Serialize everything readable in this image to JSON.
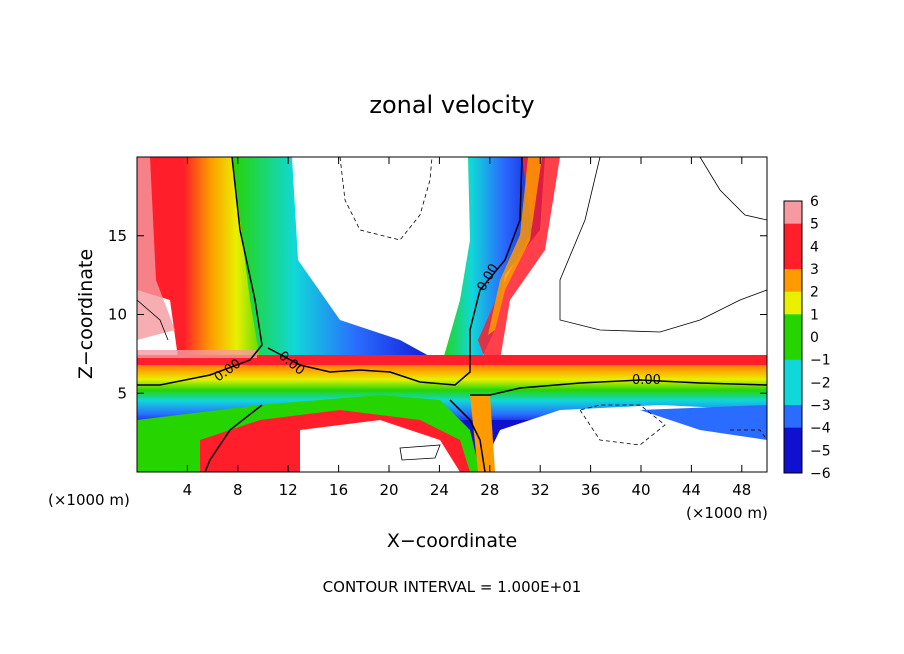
{
  "chart_data": {
    "type": "heatmap",
    "title": "zonal velocity",
    "xlabel": "X−coordinate",
    "ylabel": "Z−coordinate",
    "x_units_left": "(×1000 m)",
    "x_units_right": "(×1000 m)",
    "xlim": [
      0,
      50
    ],
    "ylim": [
      0,
      20
    ],
    "x_ticks": [
      4,
      8,
      12,
      16,
      20,
      24,
      28,
      32,
      36,
      40,
      44,
      48
    ],
    "y_ticks": [
      5,
      10,
      15
    ],
    "colorbar_ticks": [
      "6",
      "5",
      "4",
      "3",
      "2",
      "1",
      "0",
      "−1",
      "−2",
      "−3",
      "−4",
      "−5",
      "−6"
    ],
    "colorbar_range": [
      -6,
      6
    ],
    "contour_labels": [
      "0.00",
      "0.00",
      "0.00",
      "0.00"
    ],
    "footer": "CONTOUR INTERVAL = 1.000E+01",
    "colors": {
      "pos_high": "#f59aa0",
      "pos_red": "#ff1e2a",
      "orange": "#ff9a00",
      "yellow": "#e8f000",
      "green": "#26d400",
      "cyan": "#10d8d8",
      "blue": "#2a6cff",
      "dark_blue": "#1010d0",
      "purple": "#5a0ca8",
      "blank": "#ffffff"
    }
  }
}
